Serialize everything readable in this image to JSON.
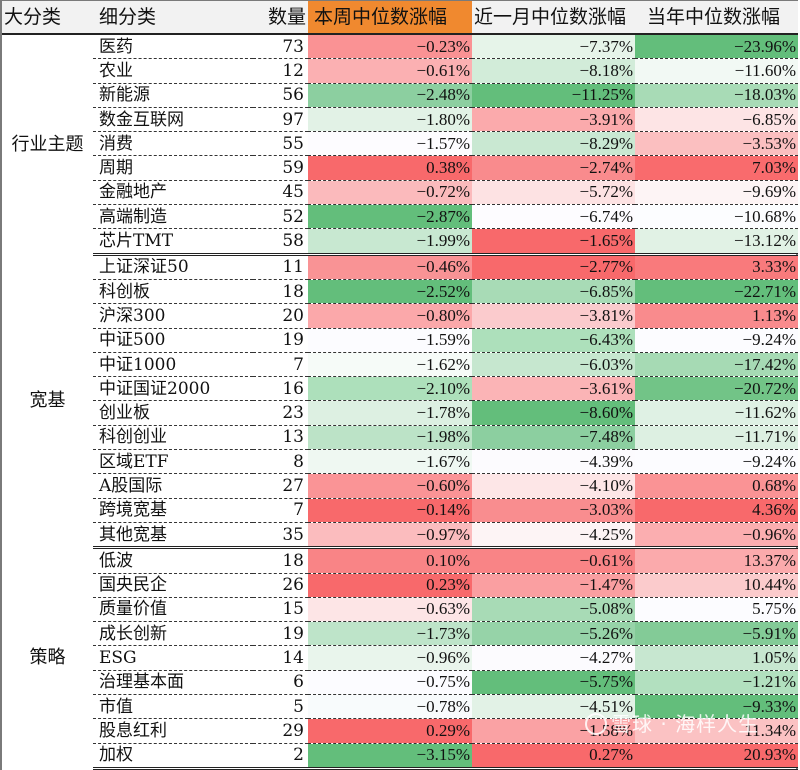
{
  "headers": {
    "category": "大分类",
    "subcategory": "细分类",
    "count": "数量",
    "week": "本周中位数涨幅",
    "month": "近一月中位数涨幅",
    "ytd": "当年中位数涨幅"
  },
  "colors": {
    "header_bg": "#f2f2f2",
    "highlight_header": "#f0892f",
    "strong_red": "#f8696b",
    "strong_green": "#63be7b",
    "neutral": "#fcfcff"
  },
  "groups": [
    {
      "name": "行业主题",
      "rows": [
        {
          "name": "医药",
          "count": "73",
          "week": "-0.23%",
          "month": "-7.37%",
          "ytd": "-23.96%",
          "wc": "#fa9294",
          "mc": "#e6f4e9",
          "yc": "#63be7b"
        },
        {
          "name": "农业",
          "count": "12",
          "week": "-0.61%",
          "month": "-8.18%",
          "ytd": "-11.60%",
          "wc": "#fbb0b2",
          "mc": "#d2ecd9",
          "yc": "#f2f9f4"
        },
        {
          "name": "新能源",
          "count": "56",
          "week": "-2.48%",
          "month": "-11.25%",
          "ytd": "-18.03%",
          "wc": "#8ccfa0",
          "mc": "#63be7b",
          "yc": "#a8dbb6"
        },
        {
          "name": "数金互联网",
          "count": "97",
          "week": "-1.80%",
          "month": "-3.91%",
          "ytd": "-6.85%",
          "wc": "#e2f2e6",
          "mc": "#fbaaac",
          "yc": "#fde4e5"
        },
        {
          "name": "消费",
          "count": "55",
          "week": "-1.57%",
          "month": "-8.29%",
          "ytd": "-3.53%",
          "wc": "#fdfcff",
          "mc": "#c9e8d2",
          "yc": "#fbbfc0"
        },
        {
          "name": "周期",
          "count": "59",
          "week": "0.38%",
          "month": "-2.74%",
          "ytd": "7.03%",
          "wc": "#f8696b",
          "mc": "#f98b8d",
          "yc": "#f96b6d"
        },
        {
          "name": "金融地产",
          "count": "45",
          "week": "-0.72%",
          "month": "-5.72%",
          "ytd": "-9.69%",
          "wc": "#fbbabc",
          "mc": "#fde2e3",
          "yc": "#fdf4f5"
        },
        {
          "name": "高端制造",
          "count": "52",
          "week": "-2.87%",
          "month": "-6.74%",
          "ytd": "-10.68%",
          "wc": "#63be7b",
          "mc": "#fdfcff",
          "yc": "#fcfdff"
        },
        {
          "name": "芯片TMT",
          "count": "58",
          "week": "-1.99%",
          "month": "-1.65%",
          "ytd": "-13.12%",
          "wc": "#c8e8d1",
          "mc": "#f8696b",
          "yc": "#e1f2e5"
        }
      ]
    },
    {
      "name": "宽基",
      "rows": [
        {
          "name": "上证深证50",
          "count": "11",
          "week": "-0.46%",
          "month": "-2.77%",
          "ytd": "3.33%",
          "wc": "#f99395",
          "mc": "#f8696b",
          "yc": "#f97a7c"
        },
        {
          "name": "科创板",
          "count": "18",
          "week": "-2.52%",
          "month": "-6.85%",
          "ytd": "-22.71%",
          "wc": "#63be7b",
          "mc": "#a8dbb6",
          "yc": "#63be7b"
        },
        {
          "name": "沪深300",
          "count": "20",
          "week": "-0.80%",
          "month": "-3.81%",
          "ytd": "1.13%",
          "wc": "#fba8aa",
          "mc": "#fbcbcd",
          "yc": "#f98b8d"
        },
        {
          "name": "中证500",
          "count": "19",
          "week": "-1.59%",
          "month": "-6.43%",
          "ytd": "-9.24%",
          "wc": "#fcfcff",
          "mc": "#ade0bb",
          "yc": "#fcfcff"
        },
        {
          "name": "中证1000",
          "count": "7",
          "week": "-1.62%",
          "month": "-6.03%",
          "ytd": "-17.42%",
          "wc": "#f6fbf8",
          "mc": "#c6e7cf",
          "yc": "#a6dab4"
        },
        {
          "name": "中证国证2000",
          "count": "16",
          "week": "-2.10%",
          "month": "-3.61%",
          "ytd": "-20.72%",
          "wc": "#ade0bb",
          "mc": "#fbb4b6",
          "yc": "#72c487"
        },
        {
          "name": "创业板",
          "count": "23",
          "week": "-1.78%",
          "month": "-8.60%",
          "ytd": "-11.62%",
          "wc": "#ddf0e2",
          "mc": "#63be7b",
          "yc": "#dff1e4"
        },
        {
          "name": "科创创业",
          "count": "13",
          "week": "-1.98%",
          "month": "-7.48%",
          "ytd": "-11.71%",
          "wc": "#bce3c7",
          "mc": "#8ccfa0",
          "yc": "#ddf0e2"
        },
        {
          "name": "区域ETF",
          "count": "8",
          "week": "-1.67%",
          "month": "-4.39%",
          "ytd": "-9.24%",
          "wc": "#eff8f2",
          "mc": "#fcfbfe",
          "yc": "#fcfcff"
        },
        {
          "name": "A股国际",
          "count": "27",
          "week": "-0.60%",
          "month": "-4.10%",
          "ytd": "0.68%",
          "wc": "#fa9496",
          "mc": "#fde6e7",
          "yc": "#fa9395"
        },
        {
          "name": "跨境宽基",
          "count": "7",
          "week": "-0.14%",
          "month": "-3.03%",
          "ytd": "4.36%",
          "wc": "#f8696b",
          "mc": "#f98d8f",
          "yc": "#f8696b"
        },
        {
          "name": "其他宽基",
          "count": "35",
          "week": "-0.97%",
          "month": "-4.25%",
          "ytd": "-0.96%",
          "wc": "#fbbcbe",
          "mc": "#fdf4f5",
          "yc": "#fbaeb0"
        }
      ]
    },
    {
      "name": "策略",
      "rows": [
        {
          "name": "低波",
          "count": "18",
          "week": "0.10%",
          "month": "-0.61%",
          "ytd": "13.37%",
          "wc": "#f98486",
          "mc": "#f98486",
          "yc": "#fbaaac"
        },
        {
          "name": "国央民企",
          "count": "26",
          "week": "0.23%",
          "month": "-1.47%",
          "ytd": "10.44%",
          "wc": "#f8696b",
          "mc": "#fa9fa1",
          "yc": "#fbcbcc"
        },
        {
          "name": "质量价值",
          "count": "15",
          "week": "-0.63%",
          "month": "-5.08%",
          "ytd": "5.75%",
          "wc": "#fde5e6",
          "mc": "#a8dbb6",
          "yc": "#fcfcff"
        },
        {
          "name": "成长创新",
          "count": "19",
          "week": "-1.73%",
          "month": "-5.26%",
          "ytd": "-5.91%",
          "wc": "#bee4c9",
          "mc": "#96d3a8",
          "yc": "#83cb97"
        },
        {
          "name": "ESG",
          "count": "14",
          "week": "-0.96%",
          "month": "-4.27%",
          "ytd": "1.05%",
          "wc": "#e9f5ec",
          "mc": "#fcfbfe",
          "yc": "#c7e7d0"
        },
        {
          "name": "治理基本面",
          "count": "6",
          "week": "-0.75%",
          "month": "-5.75%",
          "ytd": "-1.21%",
          "wc": "#fcfcff",
          "mc": "#63be7b",
          "yc": "#b2e0bf"
        },
        {
          "name": "市值",
          "count": "5",
          "week": "-0.78%",
          "month": "-4.51%",
          "ytd": "-9.33%",
          "wc": "#f8fbfc",
          "mc": "#e2f2e6",
          "yc": "#63be7b"
        },
        {
          "name": "股息红利",
          "count": "29",
          "week": "0.29%",
          "month": "-1.58%",
          "ytd": "11.34%",
          "wc": "#f8696b",
          "mc": "#faa2a4",
          "yc": "#fbc2c3"
        },
        {
          "name": "加权",
          "count": "2",
          "week": "-3.15%",
          "month": "0.27%",
          "ytd": "20.93%",
          "wc": "#63be7b",
          "mc": "#f8696b",
          "yc": "#f8696b"
        }
      ]
    }
  ],
  "watermark": "雪球 · 海样人生"
}
